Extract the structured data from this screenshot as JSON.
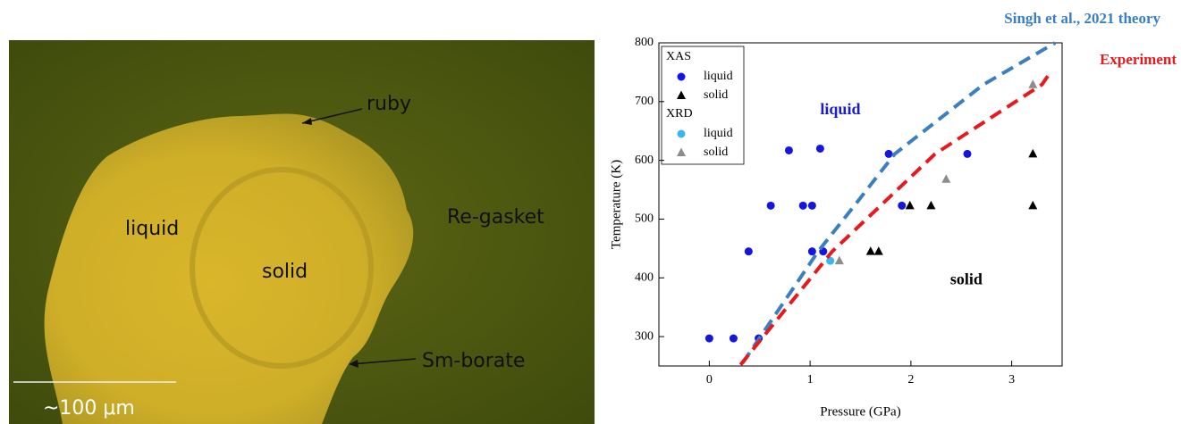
{
  "image": {
    "labels": [
      "ruby",
      "liquid",
      "Re-gasket",
      "solid",
      "Sm-borate"
    ],
    "scale_bar": "~100 μm"
  },
  "chart_data": {
    "type": "scatter",
    "xlabel": "Pressure (GPa)",
    "ylabel": "Temperature (K)",
    "xlim": [
      -0.5,
      3.5
    ],
    "xticks": [
      0,
      1,
      2,
      3
    ],
    "ylim": [
      250,
      800
    ],
    "yticks": [
      300,
      400,
      500,
      600,
      700,
      800
    ],
    "annotations": [
      {
        "text": "liquid",
        "x": 1.3,
        "y": 685,
        "color": "#1a1ad0"
      },
      {
        "text": "solid",
        "x": 2.55,
        "y": 395,
        "color": "#000000"
      }
    ],
    "series": [
      {
        "name": "liquid",
        "group": "XAS",
        "marker": "circle",
        "color": "#1515e0",
        "x": [
          0,
          0.24,
          0.49,
          0.39,
          0.61,
          0.79,
          0.93,
          1.02,
          1.02,
          1.13,
          1.1,
          1.78,
          1.91,
          2.56
        ],
        "values": [
          297,
          297,
          297,
          445,
          523,
          617,
          523,
          523,
          445,
          445,
          620,
          611,
          523,
          611
        ]
      },
      {
        "name": "solid",
        "group": "XAS",
        "marker": "triangle",
        "color": "#000000",
        "x": [
          1.6,
          1.68,
          1.99,
          2.2,
          3.21,
          3.21
        ],
        "values": [
          445,
          445,
          523,
          523,
          611,
          523
        ]
      },
      {
        "name": "liquid",
        "group": "XRD",
        "marker": "circle",
        "color": "#3bb6ee",
        "x": [
          1.2
        ],
        "values": [
          429
        ]
      },
      {
        "name": "solid",
        "group": "XRD",
        "marker": "triangle",
        "color": "#8c8c8c",
        "x": [
          1.29,
          2.35,
          3.21
        ],
        "values": [
          429,
          568,
          729
        ]
      },
      {
        "name": "Singh et al., 2021   theory",
        "marker": "dashed-line",
        "color": "#3a7fc1",
        "x": [
          0.33,
          1.08,
          1.44,
          1.84,
          2.72,
          3.43
        ],
        "values": [
          255,
          445,
          523,
          611,
          729,
          800
        ]
      },
      {
        "name": "Experiment",
        "marker": "dashed-line",
        "color": "#e8191c",
        "x": [
          0.31,
          1.22,
          1.7,
          2.24,
          3.3,
          3.36
        ],
        "values": [
          252,
          445,
          523,
          611,
          729,
          744
        ]
      }
    ]
  }
}
